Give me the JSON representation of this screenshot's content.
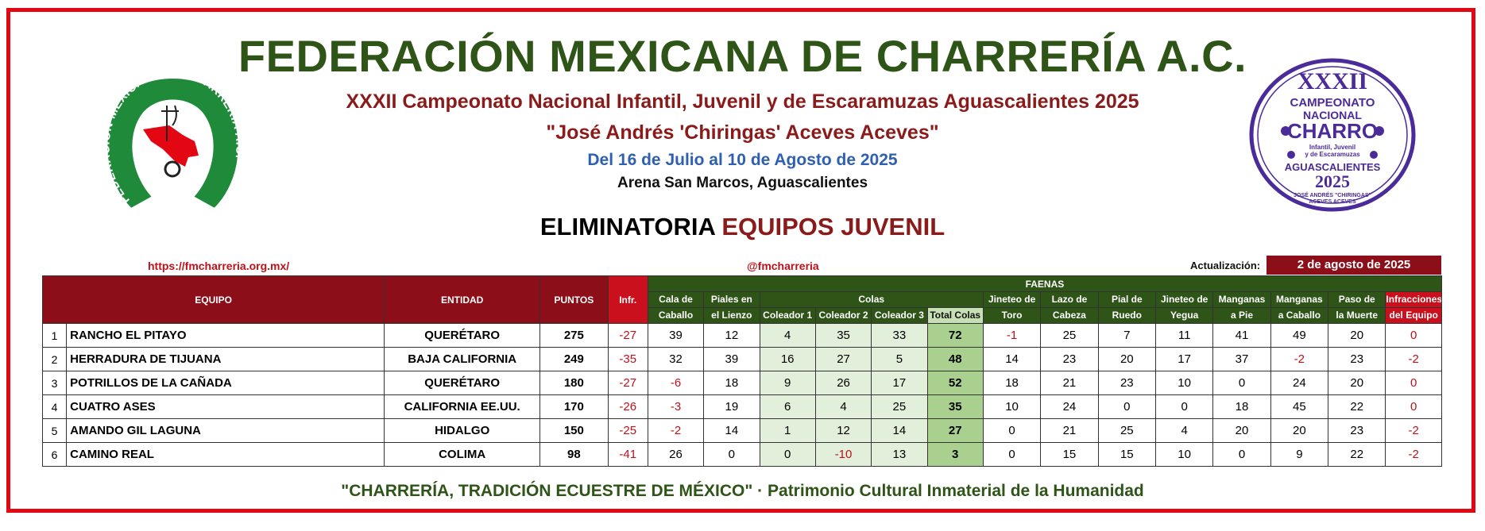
{
  "header": {
    "title": "FEDERACIÓN MEXICANA DE CHARRERÍA A.C.",
    "subtitle1": "XXXII Campeonato Nacional Infantil, Juvenil y de Escaramuzas Aguascalientes 2025",
    "subtitle2": "\"José Andrés 'Chiringas' Aceves Aceves\"",
    "dates": "Del 16 de Julio al 10 de Agosto de 2025",
    "venue": "Arena San Marcos, Aguascalientes",
    "heading_part1": "ELIMINATORIA",
    "heading_part2": "EQUIPOS JUVENIL"
  },
  "logos": {
    "left_text": "FEDERACION MEXICANA DE CHARRERIA A.C.",
    "right_line1": "XXXII",
    "right_line2": "CAMPEONATO",
    "right_line3": "NACIONAL",
    "right_line4": "CHARRO",
    "right_line5": "Infantil, Juvenil",
    "right_line6": "y de Escaramuzas",
    "right_line7": "AGUASCALIENTES",
    "right_line8": "2025",
    "right_line9": "JOSÉ ANDRÉS \"CHIRINGAS\"",
    "right_line10": "ACEVES ACEVES"
  },
  "info": {
    "url": "https://fmcharreria.org.mx/",
    "social": "@fmcharreria",
    "update_label": "Actualización:",
    "update_date": "2 de agosto de 2025"
  },
  "table": {
    "headers": {
      "equipo": "EQUIPO",
      "entidad": "ENTIDAD",
      "puntos": "PUNTOS",
      "infr": "Infr.",
      "faenas": "FAENAS",
      "cala_1": "Cala de",
      "cala_2": "Caballo",
      "piales_1": "Piales en",
      "piales_2": "el Lienzo",
      "colas": "Colas",
      "col1": "Coleador 1",
      "col2": "Coleador 2",
      "col3": "Coleador 3",
      "total_colas": "Total Colas",
      "toro_1": "Jineteo de",
      "toro_2": "Toro",
      "lazo_1": "Lazo de",
      "lazo_2": "Cabeza",
      "pial_1": "Pial de",
      "pial_2": "Ruedo",
      "yegua_1": "Jineteo de",
      "yegua_2": "Yegua",
      "mpie_1": "Manganas",
      "mpie_2": "a Pie",
      "mcab_1": "Manganas",
      "mcab_2": "a Caballo",
      "paso_1": "Paso de",
      "paso_2": "la Muerte",
      "infeq_1": "Infracciones",
      "infeq_2": "del Equipo"
    },
    "rows": [
      {
        "rank": "1",
        "team": "RANCHO EL PITAYO",
        "state": "QUERÉTARO",
        "points": "275",
        "infr": "-27",
        "cala": "39",
        "piales": "12",
        "c1": "4",
        "c2": "35",
        "c3": "33",
        "total": "72",
        "toro": "-1",
        "lazo": "25",
        "pial": "7",
        "yegua": "11",
        "mpie": "41",
        "mcab": "49",
        "paso": "20",
        "infeq": "0"
      },
      {
        "rank": "2",
        "team": "HERRADURA DE TIJUANA",
        "state": "BAJA CALIFORNIA",
        "points": "249",
        "infr": "-35",
        "cala": "32",
        "piales": "39",
        "c1": "16",
        "c2": "27",
        "c3": "5",
        "total": "48",
        "toro": "14",
        "lazo": "23",
        "pial": "20",
        "yegua": "17",
        "mpie": "37",
        "mcab": "-2",
        "paso": "23",
        "infeq": "-2"
      },
      {
        "rank": "3",
        "team": "POTRILLOS DE LA CAÑADA",
        "state": "QUERÉTARO",
        "points": "180",
        "infr": "-27",
        "cala": "-6",
        "piales": "18",
        "c1": "9",
        "c2": "26",
        "c3": "17",
        "total": "52",
        "toro": "18",
        "lazo": "21",
        "pial": "23",
        "yegua": "10",
        "mpie": "0",
        "mcab": "24",
        "paso": "20",
        "infeq": "0"
      },
      {
        "rank": "4",
        "team": "CUATRO ASES",
        "state": "CALIFORNIA EE.UU.",
        "points": "170",
        "infr": "-26",
        "cala": "-3",
        "piales": "19",
        "c1": "6",
        "c2": "4",
        "c3": "25",
        "total": "35",
        "toro": "10",
        "lazo": "24",
        "pial": "0",
        "yegua": "0",
        "mpie": "18",
        "mcab": "45",
        "paso": "22",
        "infeq": "0"
      },
      {
        "rank": "5",
        "team": "AMANDO GIL LAGUNA",
        "state": "HIDALGO",
        "points": "150",
        "infr": "-25",
        "cala": "-2",
        "piales": "14",
        "c1": "1",
        "c2": "12",
        "c3": "14",
        "total": "27",
        "toro": "0",
        "lazo": "21",
        "pial": "25",
        "yegua": "4",
        "mpie": "20",
        "mcab": "20",
        "paso": "23",
        "infeq": "-2"
      },
      {
        "rank": "6",
        "team": "CAMINO REAL",
        "state": "COLIMA",
        "points": "98",
        "infr": "-41",
        "cala": "26",
        "piales": "0",
        "c1": "0",
        "c2": "-10",
        "c3": "13",
        "total": "3",
        "toro": "0",
        "lazo": "15",
        "pial": "15",
        "yegua": "10",
        "mpie": "0",
        "mcab": "9",
        "paso": "22",
        "infeq": "-2"
      }
    ]
  },
  "footer": {
    "text": "\"CHARRERÍA, TRADICIÓN ECUESTRE DE MÉXICO\" · Patrimonio Cultural Inmaterial de la Humanidad"
  },
  "colors": {
    "frame": "#e30613",
    "title_green": "#2e5417",
    "maroon": "#8b0e18",
    "blue": "#2f5fb0",
    "light_green": "#e2efda",
    "dark_green_cell": "#a9d08e",
    "purple": "#4b2a9a"
  }
}
